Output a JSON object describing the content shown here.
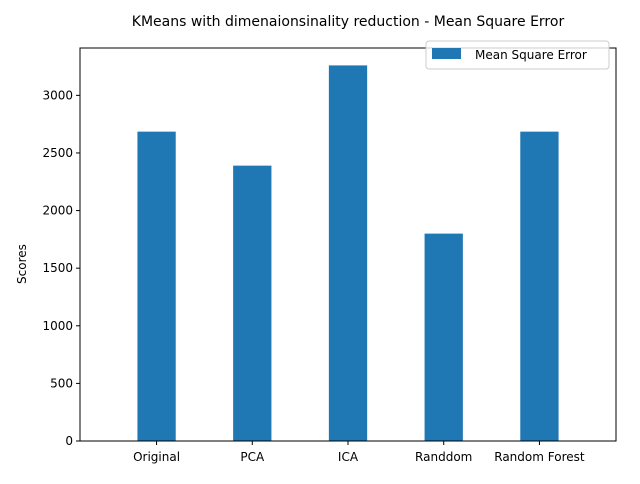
{
  "chart_data": {
    "type": "bar",
    "title": "KMeans with dimenaionsinality reduction - Mean Square Error",
    "xlabel": "",
    "ylabel": "Scores",
    "categories": [
      "Original",
      "PCA",
      "ICA",
      "Randdom",
      "Random Forest"
    ],
    "series": [
      {
        "name": "Mean Square Error",
        "values": [
          2685,
          2390,
          3260,
          1800,
          2685
        ],
        "color": "#1f77b4"
      }
    ],
    "ylim": [
      0,
      3411
    ],
    "yticks": [
      0,
      500,
      1000,
      1500,
      2000,
      2500,
      3000
    ],
    "grid": false,
    "legend_position": "top-right"
  }
}
